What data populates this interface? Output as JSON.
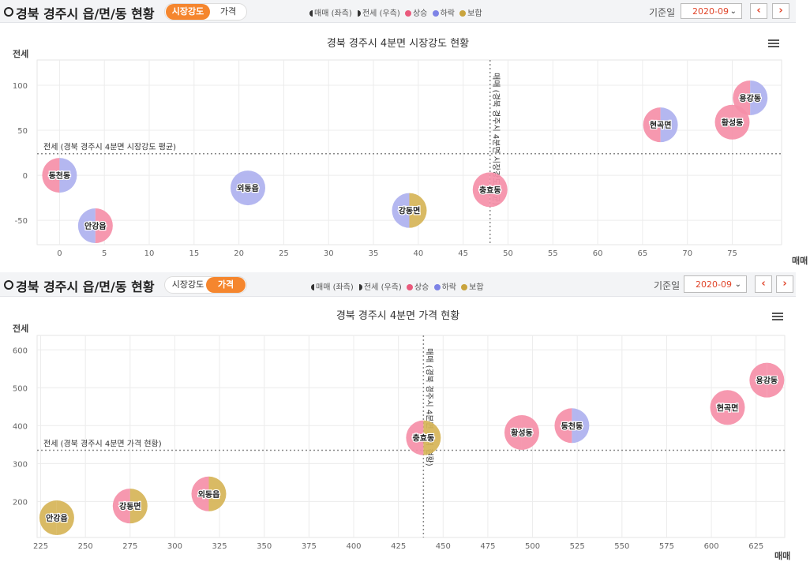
{
  "panels": [
    {
      "header": {
        "title": "경북 경주시 읍/면/동 현황",
        "tabs": [
          "시장강도",
          "가격"
        ],
        "active_tab": 0,
        "legend": {
          "buy": "매매 (좌측)",
          "lease": "전세 (우측)",
          "up": "상승",
          "down": "하락",
          "hold": "보합"
        },
        "basis_label": "기준일",
        "date_value": "2020-09",
        "prev": "‹",
        "next": "›"
      },
      "chart_data": {
        "type": "scatter",
        "title": "경북 경주시 4분면 시장강도 현황",
        "xlabel": "매매",
        "ylabel": "전세",
        "xlim": [
          -2.5,
          80.5
        ],
        "ylim": [
          -77,
          128
        ],
        "xticks": [
          0,
          5,
          10,
          15,
          20,
          25,
          30,
          35,
          40,
          45,
          50,
          55,
          60,
          65,
          70,
          75
        ],
        "yticks": [
          -50,
          0,
          50,
          100
        ],
        "avg_x": 48,
        "avg_y": 24,
        "avg_x_label": "매매 (경북 경주시 4분면 시장강도 평균)",
        "avg_y_label": "전세 (경북 경주시 4분면 시장강도 평균)",
        "points": [
          {
            "name": "동천동",
            "x": 0,
            "y": 0,
            "buy": "up",
            "lease": "down"
          },
          {
            "name": "안강읍",
            "x": 4,
            "y": -56,
            "buy": "down",
            "lease": "up"
          },
          {
            "name": "외동읍",
            "x": 21,
            "y": -14,
            "buy": "down",
            "lease": "down"
          },
          {
            "name": "강동면",
            "x": 39,
            "y": -39,
            "buy": "down",
            "lease": "hold"
          },
          {
            "name": "충효동",
            "x": 48,
            "y": -16,
            "buy": "up",
            "lease": "up"
          },
          {
            "name": "현곡면",
            "x": 67,
            "y": 56,
            "buy": "up",
            "lease": "down"
          },
          {
            "name": "황성동",
            "x": 75,
            "y": 59,
            "buy": "up",
            "lease": "up"
          },
          {
            "name": "용강동",
            "x": 77,
            "y": 86,
            "buy": "up",
            "lease": "down"
          }
        ]
      }
    },
    {
      "header": {
        "title": "경북 경주시 읍/면/동 현황",
        "tabs": [
          "시장강도",
          "가격"
        ],
        "active_tab": 1,
        "legend": {
          "buy": "매매 (좌측)",
          "lease": "전세 (우측)",
          "up": "상승",
          "down": "하락",
          "hold": "보합"
        },
        "basis_label": "기준일",
        "date_value": "2020-09",
        "prev": "‹",
        "next": "›"
      },
      "chart_data": {
        "type": "scatter",
        "title": "경북 경주시 4분면 가격 현황",
        "xlabel": "매매",
        "ylabel": "전세",
        "xlim": [
          223,
          641
        ],
        "ylim": [
          105,
          638
        ],
        "xticks": [
          225,
          250,
          275,
          300,
          325,
          350,
          375,
          400,
          425,
          450,
          475,
          500,
          525,
          550,
          575,
          600,
          625
        ],
        "yticks": [
          200,
          300,
          400,
          500,
          600
        ],
        "avg_x": 439,
        "avg_y": 335,
        "avg_x_label": "매매 (경북 경주시 4분면 가격 현황)",
        "avg_y_label": "전세 (경북 경주시 4분면 가격 현황)",
        "points": [
          {
            "name": "안강읍",
            "x": 234,
            "y": 157,
            "buy": "hold",
            "lease": "hold"
          },
          {
            "name": "강동면",
            "x": 275,
            "y": 188,
            "buy": "up",
            "lease": "hold"
          },
          {
            "name": "외동읍",
            "x": 319,
            "y": 220,
            "buy": "up",
            "lease": "hold"
          },
          {
            "name": "충효동",
            "x": 439,
            "y": 368,
            "buy": "up",
            "lease": "hold"
          },
          {
            "name": "황성동",
            "x": 494,
            "y": 382,
            "buy": "up",
            "lease": "up"
          },
          {
            "name": "동천동",
            "x": 522,
            "y": 400,
            "buy": "up",
            "lease": "down"
          },
          {
            "name": "현곡면",
            "x": 609,
            "y": 448,
            "buy": "up",
            "lease": "up"
          },
          {
            "name": "용강동",
            "x": 631,
            "y": 520,
            "buy": "up",
            "lease": "up"
          }
        ]
      }
    }
  ],
  "colors": {
    "up": "#f58fa8",
    "down": "#aeb1ef",
    "hold": "#d6b457",
    "accent": "#f5862e",
    "nav": "#e0452a"
  }
}
